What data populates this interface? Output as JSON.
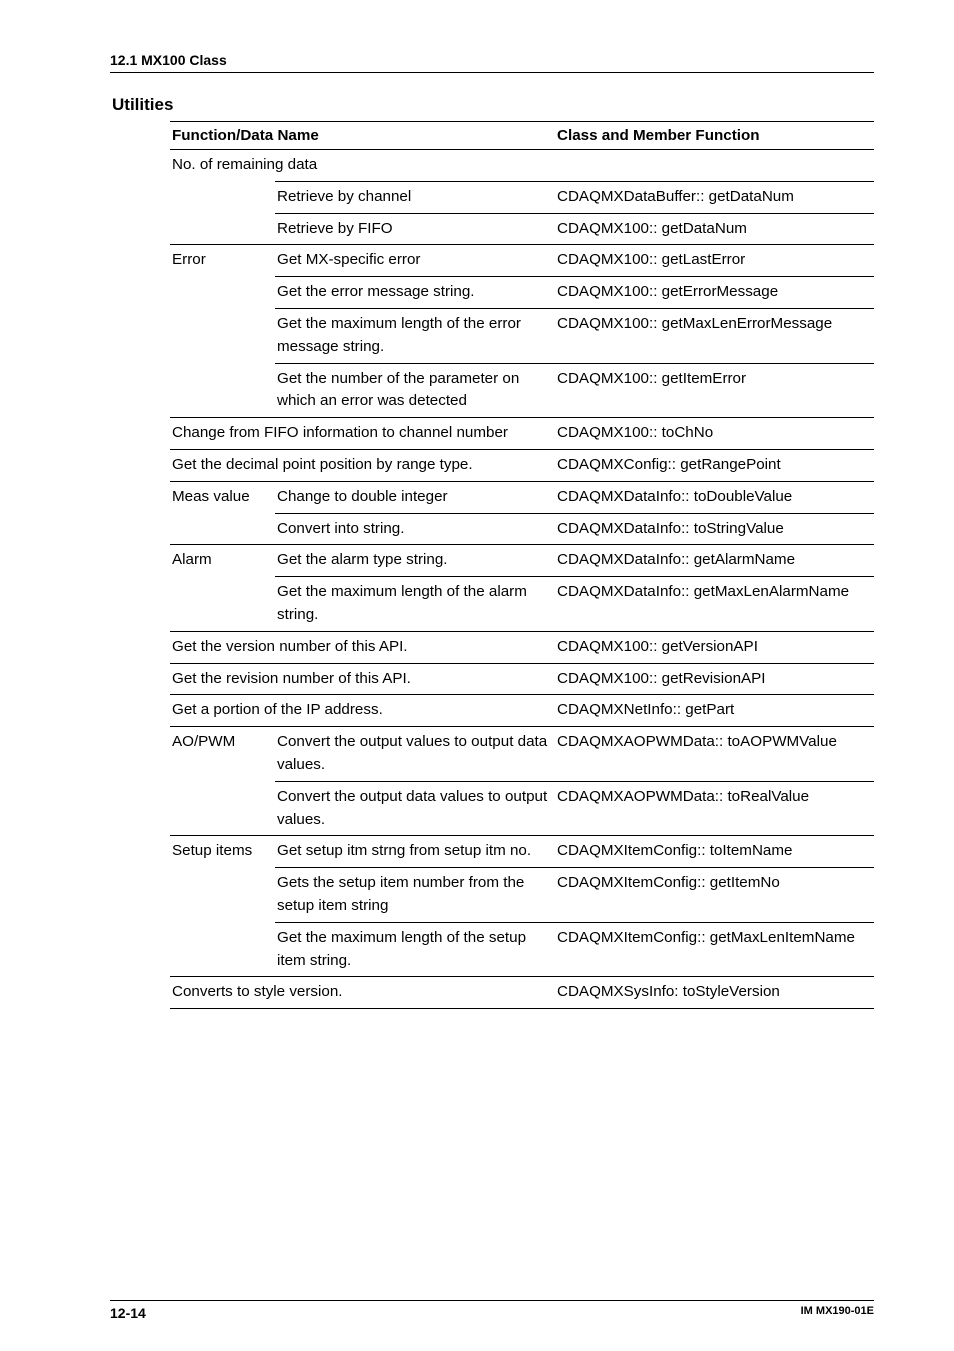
{
  "header": {
    "section": "12.1  MX100 Class"
  },
  "subheading": "Utilities",
  "table": {
    "columns": [
      "Function/Data Name",
      "",
      "Class and Member Function"
    ],
    "rows": [
      {
        "c1": "No. of  remaining data",
        "span12": true,
        "bt1": true
      },
      {
        "c2": "Retrieve by channel",
        "c3": "CDAQMXDataBuffer:: getDataNum",
        "bt2": true,
        "bt3": true
      },
      {
        "c2": "Retrieve by FIFO",
        "c3": "CDAQMX100:: getDataNum",
        "bt2": true,
        "bt3": true
      },
      {
        "c1": "Error",
        "c2": "Get MX-specific error",
        "c3": "CDAQMX100:: getLastError",
        "bt1": true,
        "bt2": true,
        "bt3": true
      },
      {
        "c2": "Get the error message string.",
        "c3": "CDAQMX100:: getErrorMessage",
        "bt2": true,
        "bt3": true
      },
      {
        "c2": "Get the maximum length of the error message string.",
        "c3": "CDAQMX100:: getMaxLenErrorMessage",
        "bt2": true,
        "bt3": true
      },
      {
        "c2": "Get the number of the parameter on which an error was detected",
        "c3": "CDAQMX100:: getItemError",
        "bt2": true,
        "bt3": true
      },
      {
        "c1": "Change from FIFO information to channel number",
        "span12": true,
        "c3": "CDAQMX100:: toChNo",
        "bt1": true,
        "bt3": true
      },
      {
        "c1": "Get the decimal point position by range type.",
        "span12": true,
        "c3": "CDAQMXConfig:: getRangePoint",
        "bt1": true,
        "bt3": true
      },
      {
        "c1": "Meas value",
        "c2": "Change to double integer",
        "c3": "CDAQMXDataInfo:: toDoubleValue",
        "bt1": true,
        "bt2": true,
        "bt3": true
      },
      {
        "c2": "Convert into string.",
        "c3": "CDAQMXDataInfo:: toStringValue",
        "bt2": true,
        "bt3": true
      },
      {
        "c1": "Alarm",
        "c2": "Get the alarm type string.",
        "c3": "CDAQMXDataInfo:: getAlarmName",
        "bt1": true,
        "bt2": true,
        "bt3": true
      },
      {
        "c2": "Get the maximum length of the alarm string.",
        "c3": "CDAQMXDataInfo:: getMaxLenAlarmName",
        "bt2": true,
        "bt3": true
      },
      {
        "c1": "Get the version number of this API.",
        "span12": true,
        "c3": "CDAQMX100:: getVersionAPI",
        "bt1": true,
        "bt3": true
      },
      {
        "c1": "Get the revision number of this API.",
        "span12": true,
        "c3": "CDAQMX100:: getRevisionAPI",
        "bt1": true,
        "bt3": true
      },
      {
        "c1": "Get a portion of the IP address.",
        "span12": true,
        "c3": "CDAQMXNetInfo:: getPart",
        "bt1": true,
        "bt3": true
      },
      {
        "c1": "AO/PWM",
        "c2": "Convert the output values to output data values.",
        "c3": "CDAQMXAOPWMData:: toAOPWMValue",
        "bt1": true,
        "bt2": true,
        "bt3": true
      },
      {
        "c2": "Convert the output data values to output values.",
        "c3": "CDAQMXAOPWMData:: toRealValue",
        "bt2": true,
        "bt3": true
      },
      {
        "c1": "Setup items",
        "c2": "Get setup itm strng from setup itm no.",
        "c3": "CDAQMXItemConfig:: toItemName",
        "bt1": true,
        "bt2": true,
        "bt3": true
      },
      {
        "c2": "Gets the setup item number from the setup item string",
        "c3": "CDAQMXItemConfig:: getItemNo",
        "bt2": true,
        "bt3": true
      },
      {
        "c2": "Get the maximum length of the setup item string.",
        "c3": "CDAQMXItemConfig:: getMaxLenItemName",
        "bt2": true,
        "bt3": true
      },
      {
        "c1": "Converts to style version.",
        "span12": true,
        "c3": "CDAQMXSysInfo: toStyleVersion",
        "bt1": true,
        "bt3": true,
        "last": true
      }
    ]
  },
  "footer": {
    "page": "12-14",
    "doc": "IM MX190-01E"
  }
}
